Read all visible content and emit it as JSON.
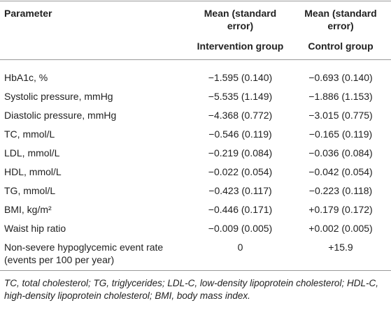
{
  "table": {
    "header": [
      "Parameter",
      {
        "line": "Mean (standard error)",
        "group": "Intervention group"
      },
      {
        "line": "Mean (standard error)",
        "group": "Control group"
      }
    ],
    "rows": [
      [
        "HbA1c, %",
        "−1.595 (0.140)",
        "−0.693 (0.140)"
      ],
      [
        "Systolic pressure, mmHg",
        "−5.535 (1.149)",
        "−1.886 (1.153)"
      ],
      [
        "Diastolic pressure, mmHg",
        "−4.368 (0.772)",
        "−3.015 (0.775)"
      ],
      [
        "TC, mmol/L",
        "−0.546 (0.119)",
        "−0.165 (0.119)"
      ],
      [
        "LDL, mmol/L",
        "−0.219 (0.084)",
        "−0.036 (0.084)"
      ],
      [
        "HDL, mmol/L",
        "−0.022 (0.054)",
        "−0.042 (0.054)"
      ],
      [
        "TG, mmol/L",
        "−0.423 (0.117)",
        "−0.223 (0.118)"
      ],
      [
        "BMI, kg/m²",
        "−0.446 (0.171)",
        "+0.179 (0.172)"
      ],
      [
        "Waist hip ratio",
        "−0.009 (0.005)",
        "+0.002 (0.005)"
      ],
      [
        "Non-severe hypoglycemic event rate (events per 100 per year)",
        "0",
        "+15.9"
      ]
    ]
  },
  "footnote": "TC, total cholesterol; TG, triglycerides; LDL-C, low-density lipoprotein cholesterol; HDL-C, high-density lipoprotein cholesterol; BMI, body mass index."
}
